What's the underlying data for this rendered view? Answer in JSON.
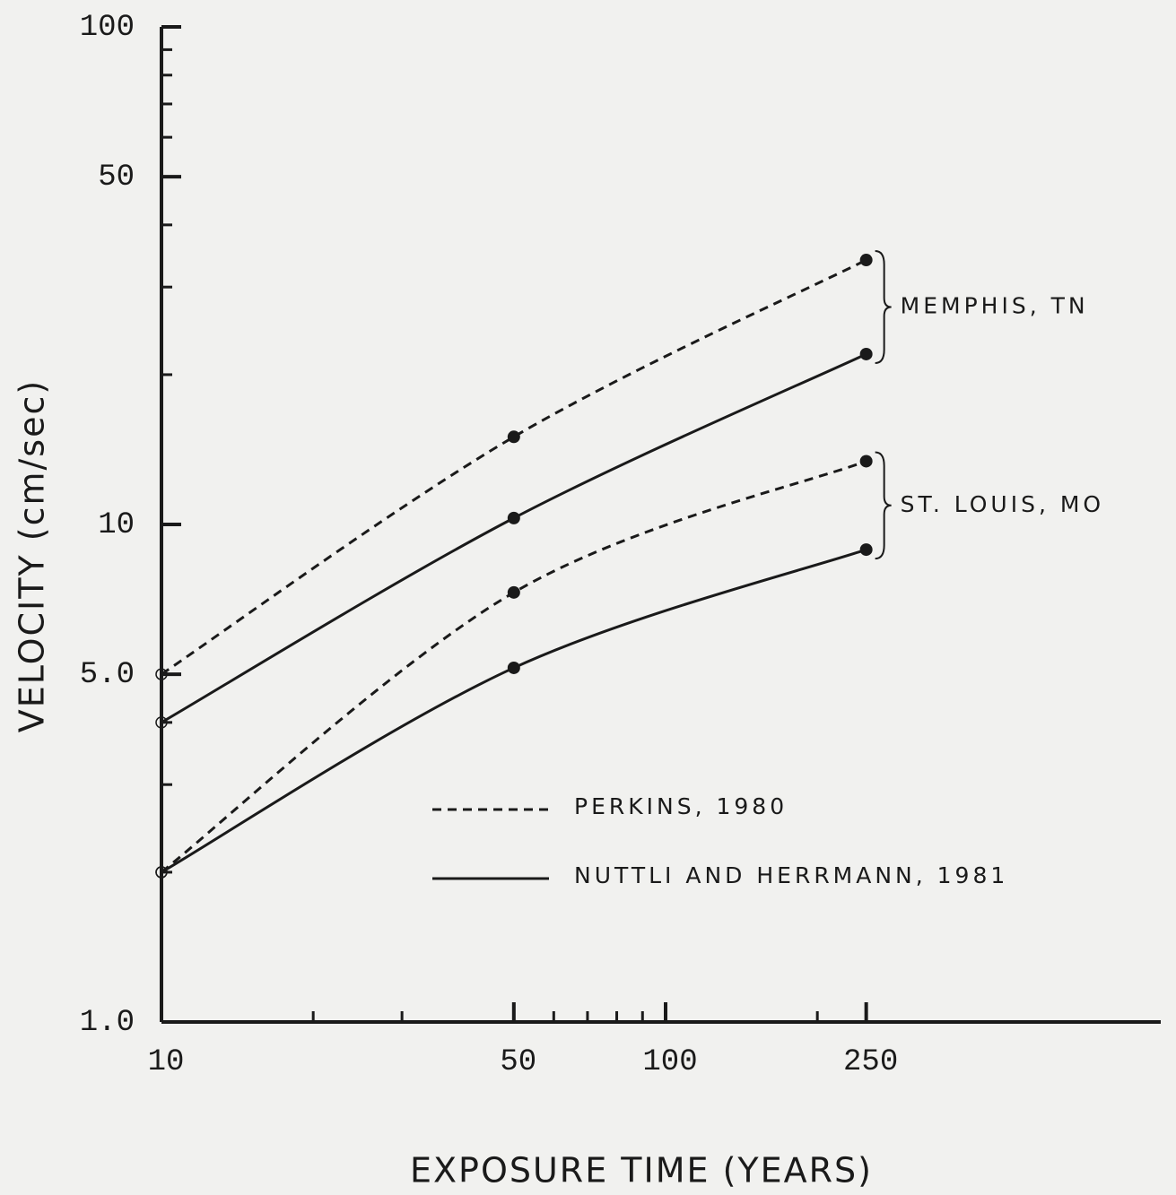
{
  "chart_data": {
    "type": "line",
    "xlabel": "EXPOSURE TIME (YEARS)",
    "ylabel": "VELOCITY  (cm/sec)",
    "log_x": true,
    "log_y": true,
    "x": [
      10,
      50,
      250
    ],
    "xlim": [
      10,
      1000
    ],
    "ylim": [
      1,
      100
    ],
    "xticks": [
      10,
      50,
      100,
      250
    ],
    "xminor": [
      20,
      30,
      60,
      70,
      80,
      90,
      200
    ],
    "yticks": [
      {
        "value": 1,
        "label": "1.0"
      },
      {
        "value": 5,
        "label": "5.0"
      },
      10,
      50,
      100
    ],
    "yminor": [
      2,
      3,
      4,
      20,
      30,
      40,
      60,
      70,
      80,
      90
    ],
    "color": "#1a1a1a",
    "legend": [
      {
        "label": "PERKINS, 1980",
        "dashed": true
      },
      {
        "label": "NUTTLI AND HERRMANN, 1981",
        "dashed": false
      }
    ],
    "groups": [
      {
        "label": "MEMPHIS, TN",
        "series": [
          {
            "dashed": true,
            "values": [
              5.0,
              15,
              34
            ]
          },
          {
            "dashed": false,
            "values": [
              4.0,
              10.3,
              22
            ]
          }
        ]
      },
      {
        "label": "ST. LOUIS, MO",
        "series": [
          {
            "dashed": true,
            "values": [
              2.0,
              7.3,
              13.4
            ]
          },
          {
            "dashed": false,
            "values": [
              2.0,
              5.15,
              8.9
            ]
          }
        ]
      }
    ]
  }
}
